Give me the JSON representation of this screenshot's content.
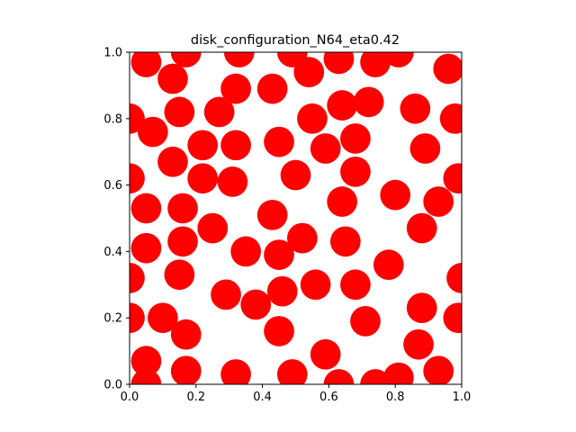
{
  "chart_data": {
    "type": "scatter",
    "title": "disk_configuration_N64_eta0.42",
    "xlabel": "",
    "ylabel": "",
    "xlim": [
      0.0,
      1.0
    ],
    "ylim": [
      0.0,
      1.0
    ],
    "x_ticks": [
      "0.0",
      "0.2",
      "0.4",
      "0.6",
      "0.8",
      "1.0"
    ],
    "y_ticks": [
      "0.0",
      "0.2",
      "0.4",
      "0.6",
      "0.8",
      "1.0"
    ],
    "aspect": "equal",
    "grid": false,
    "legend": "none",
    "marker": "disk",
    "disk_radius": 0.0457,
    "color": "#ff0000",
    "points": [
      [
        0.17,
        1.0
      ],
      [
        0.33,
        1.0
      ],
      [
        0.49,
        1.0
      ],
      [
        0.81,
        1.0
      ],
      [
        0.05,
        0.97
      ],
      [
        0.63,
        0.98
      ],
      [
        0.74,
        0.97
      ],
      [
        0.96,
        0.95
      ],
      [
        0.54,
        0.94
      ],
      [
        0.13,
        0.92
      ],
      [
        0.32,
        0.89
      ],
      [
        0.43,
        0.89
      ],
      [
        0.72,
        0.85
      ],
      [
        0.64,
        0.84
      ],
      [
        0.86,
        0.83
      ],
      [
        0.15,
        0.82
      ],
      [
        0.27,
        0.82
      ],
      [
        0.0,
        0.8
      ],
      [
        0.55,
        0.8
      ],
      [
        0.98,
        0.8
      ],
      [
        0.07,
        0.76
      ],
      [
        0.45,
        0.73
      ],
      [
        0.68,
        0.74
      ],
      [
        0.22,
        0.72
      ],
      [
        0.32,
        0.72
      ],
      [
        0.59,
        0.71
      ],
      [
        0.89,
        0.71
      ],
      [
        0.13,
        0.67
      ],
      [
        0.68,
        0.64
      ],
      [
        0.5,
        0.63
      ],
      [
        0.22,
        0.62
      ],
      [
        0.31,
        0.61
      ],
      [
        0.0,
        0.62
      ],
      [
        0.99,
        0.62
      ],
      [
        0.8,
        0.57
      ],
      [
        0.64,
        0.55
      ],
      [
        0.93,
        0.55
      ],
      [
        0.05,
        0.53
      ],
      [
        0.16,
        0.53
      ],
      [
        0.43,
        0.51
      ],
      [
        0.25,
        0.47
      ],
      [
        0.88,
        0.47
      ],
      [
        0.52,
        0.44
      ],
      [
        0.65,
        0.43
      ],
      [
        0.16,
        0.43
      ],
      [
        0.05,
        0.41
      ],
      [
        0.35,
        0.4
      ],
      [
        0.45,
        0.39
      ],
      [
        0.78,
        0.36
      ],
      [
        0.15,
        0.33
      ],
      [
        0.0,
        0.32
      ],
      [
        1.0,
        0.32
      ],
      [
        0.56,
        0.3
      ],
      [
        0.68,
        0.3
      ],
      [
        0.46,
        0.28
      ],
      [
        0.29,
        0.27
      ],
      [
        0.38,
        0.24
      ],
      [
        0.88,
        0.23
      ],
      [
        0.1,
        0.2
      ],
      [
        0.99,
        0.2
      ],
      [
        0.0,
        0.2
      ],
      [
        0.71,
        0.19
      ],
      [
        0.45,
        0.16
      ],
      [
        0.17,
        0.15
      ],
      [
        0.87,
        0.12
      ],
      [
        0.59,
        0.09
      ],
      [
        0.05,
        0.07
      ],
      [
        0.17,
        0.04
      ],
      [
        0.32,
        0.03
      ],
      [
        0.49,
        0.03
      ],
      [
        0.81,
        0.02
      ],
      [
        0.93,
        0.04
      ],
      [
        0.63,
        0.0
      ],
      [
        0.74,
        0.0
      ],
      [
        0.05,
        0.0
      ]
    ]
  }
}
